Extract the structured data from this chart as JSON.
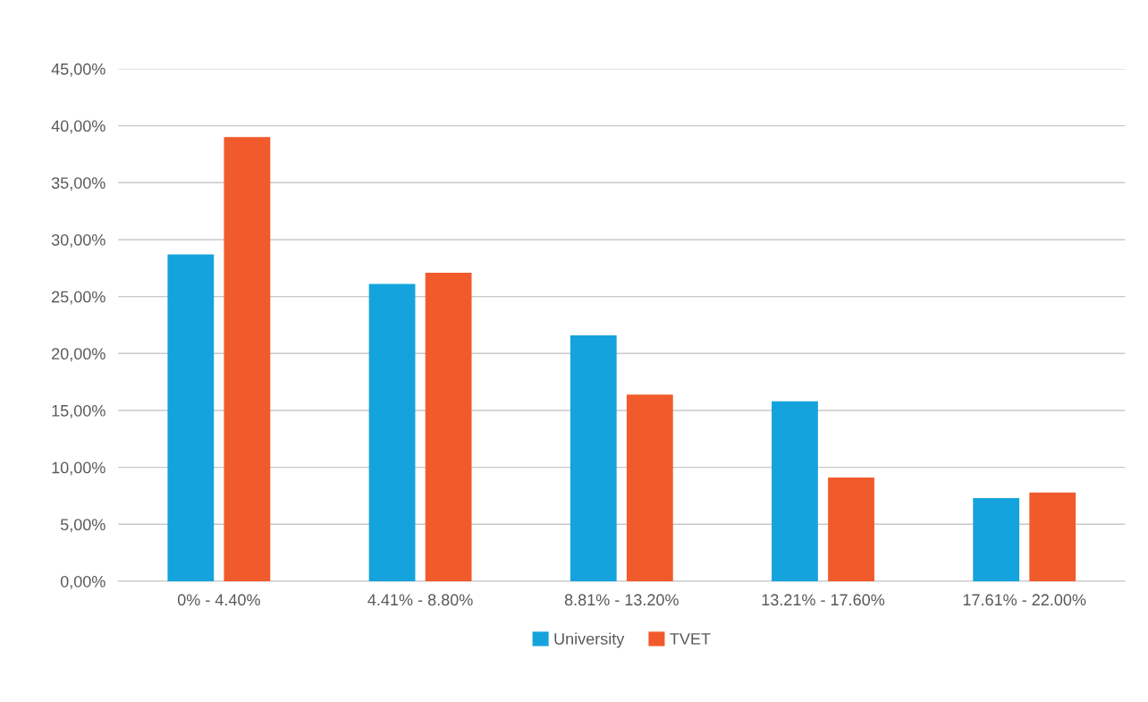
{
  "chart_data": {
    "type": "bar",
    "categories": [
      "0% - 4.40%",
      "4.41% - 8.80%",
      "8.81% - 13.20%",
      "13.21% - 17.60%",
      "17.61% - 22.00%"
    ],
    "series": [
      {
        "name": "University",
        "color": "#14a3dc",
        "values": [
          28.7,
          26.1,
          21.6,
          15.8,
          7.3
        ]
      },
      {
        "name": "TVET",
        "color": "#f15a2b",
        "values": [
          39.0,
          27.1,
          16.4,
          9.1,
          7.8
        ]
      }
    ],
    "ylim": [
      0,
      45
    ],
    "yticks": [
      {
        "value": 0,
        "label": "0,00%"
      },
      {
        "value": 5,
        "label": "5,00%"
      },
      {
        "value": 10,
        "label": "10,00%"
      },
      {
        "value": 15,
        "label": "15,00%"
      },
      {
        "value": 20,
        "label": "20,00%"
      },
      {
        "value": 25,
        "label": "25,00%"
      },
      {
        "value": 30,
        "label": "30,00%"
      },
      {
        "value": 35,
        "label": "35,00%"
      },
      {
        "value": 40,
        "label": "40,00%"
      },
      {
        "value": 45,
        "label": "45,00%"
      }
    ],
    "grid": "y",
    "legend": "bottom"
  }
}
